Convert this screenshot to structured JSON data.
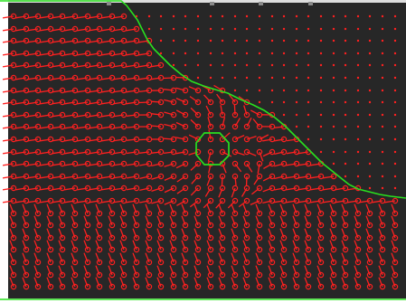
{
  "colors": {
    "background": "#272727",
    "vector": "#ff2020",
    "contour": "#29e01f",
    "border": "#ffffff",
    "marker": "#8a8a8a"
  },
  "description_of_content": {
    "field": "flow-vector-field",
    "regions": [
      "upper-right-static",
      "lower-left-moving"
    ]
  }
}
